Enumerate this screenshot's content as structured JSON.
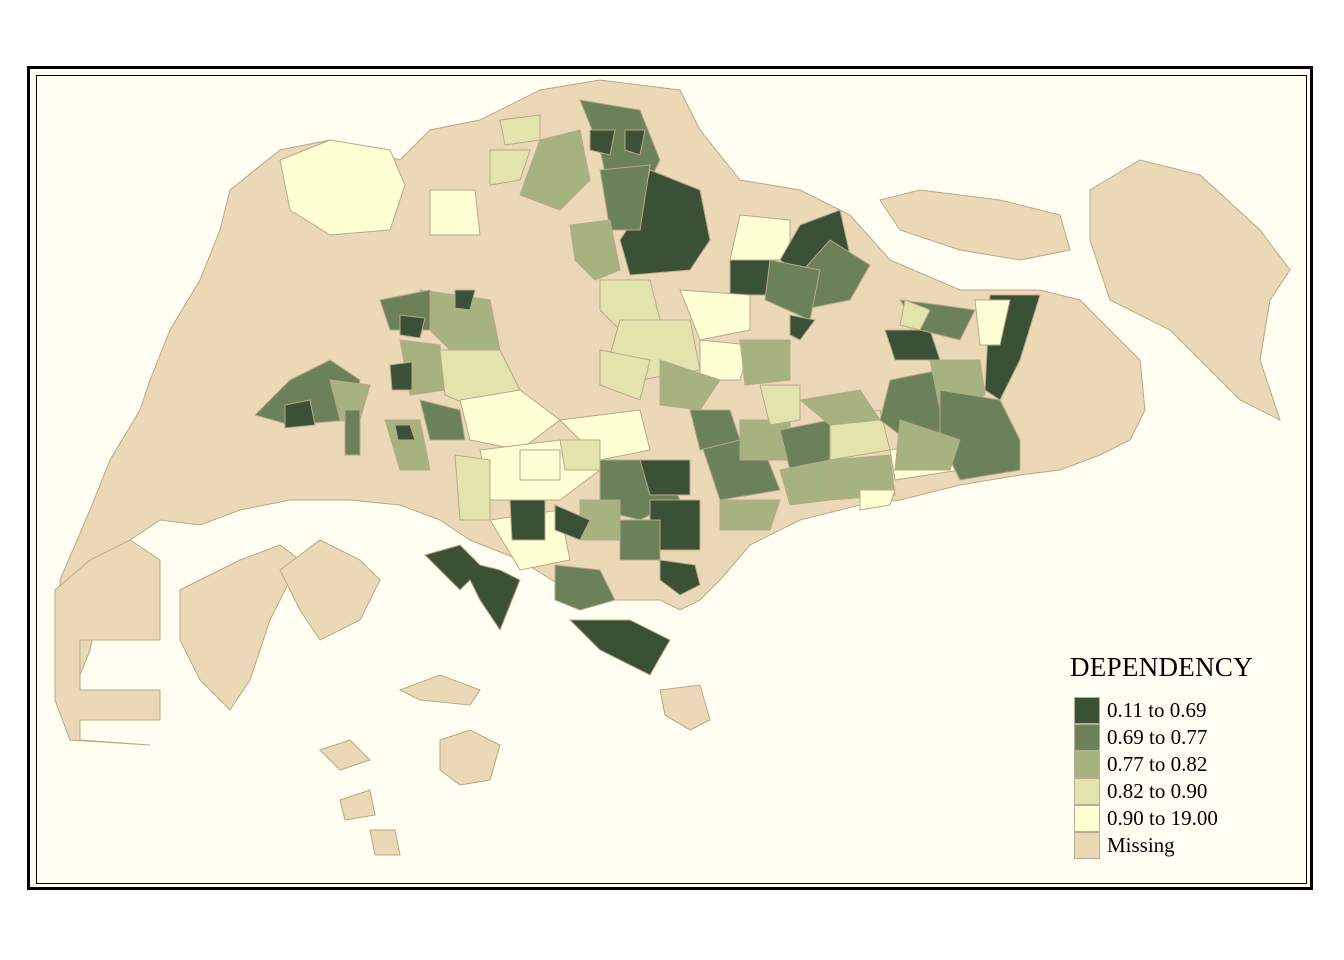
{
  "legend": {
    "title": "DEPENDENCY",
    "classes": [
      {
        "label": "0.11 to 0.69",
        "color": "#3b5135"
      },
      {
        "label": "0.69 to 0.77",
        "color": "#6b8157"
      },
      {
        "label": "0.77 to 0.82",
        "color": "#a6b27f"
      },
      {
        "label": "0.82 to 0.90",
        "color": "#e3e3ae"
      },
      {
        "label": "0.90 to 19.00",
        "color": "#ffffd4"
      },
      {
        "label": "Missing",
        "color": "#ebd8b7"
      }
    ]
  },
  "colors": {
    "background": "#fffef0",
    "boundary": "#b8a88a"
  }
}
